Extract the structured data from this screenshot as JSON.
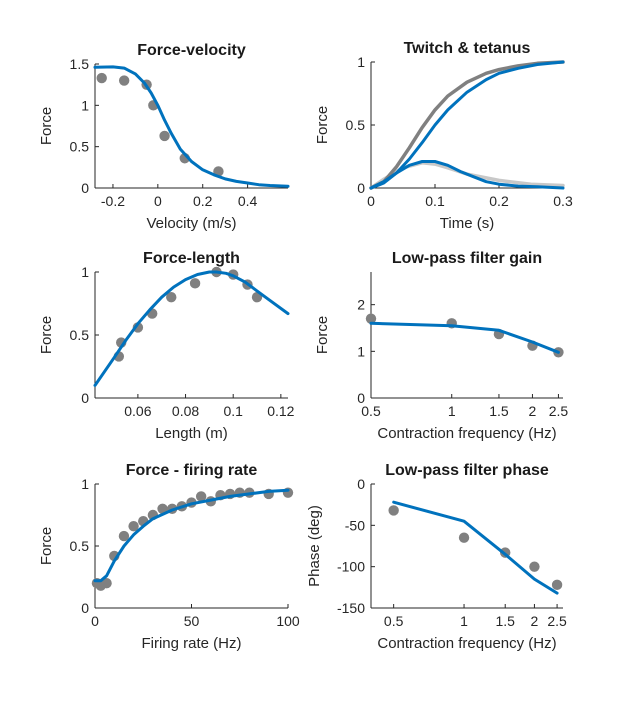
{
  "colors": {
    "fit": "#0072BD",
    "data": "#808080",
    "data_light": "#C8C8C8",
    "axis": "#262626"
  },
  "chart_data": [
    {
      "type": "scatter",
      "title": "Force-velocity",
      "xlabel": "Velocity (m/s)",
      "ylabel": "Force",
      "xlim": [
        -0.28,
        0.58
      ],
      "ylim": [
        0,
        1.5
      ],
      "xticks": [
        -0.2,
        0,
        0.2,
        0.4
      ],
      "xtick_labels": [
        "-0.2",
        "0",
        "0.2",
        "0.4"
      ],
      "yticks": [
        0,
        0.5,
        1,
        1.5
      ],
      "ytick_labels": [
        "0",
        "0.5",
        "1",
        "1.5"
      ],
      "points": {
        "x": [
          -0.25,
          -0.15,
          -0.05,
          -0.02,
          0.03,
          0.12,
          0.27
        ],
        "y": [
          1.33,
          1.3,
          1.25,
          1.0,
          0.63,
          0.36,
          0.2
        ]
      },
      "lines": [
        {
          "x": [
            -0.28,
            -0.2,
            -0.15,
            -0.1,
            -0.06,
            -0.03,
            0,
            0.03,
            0.06,
            0.1,
            0.15,
            0.2,
            0.25,
            0.3,
            0.35,
            0.4,
            0.45,
            0.5,
            0.58
          ],
          "y": [
            1.46,
            1.465,
            1.45,
            1.38,
            1.27,
            1.15,
            1.0,
            0.82,
            0.66,
            0.47,
            0.32,
            0.22,
            0.16,
            0.11,
            0.08,
            0.06,
            0.04,
            0.03,
            0.02
          ]
        }
      ]
    },
    {
      "type": "line",
      "title": "Twitch & tetanus",
      "xlabel": "Time (s)",
      "ylabel": "Force",
      "xlim": [
        0,
        0.3
      ],
      "ylim": [
        0,
        1
      ],
      "xticks": [
        0,
        0.1,
        0.2,
        0.3
      ],
      "xtick_labels": [
        "0",
        "0.1",
        "0.2",
        "0.3"
      ],
      "yticks": [
        0,
        0.5,
        1
      ],
      "ytick_labels": [
        "0",
        "0.5",
        "1"
      ],
      "lines": [
        {
          "style": "data_light",
          "x": [
            0,
            0.02,
            0.05,
            0.08,
            0.1,
            0.12,
            0.15,
            0.2,
            0.25,
            0.3
          ],
          "y": [
            0,
            0.07,
            0.16,
            0.2,
            0.19,
            0.16,
            0.11,
            0.06,
            0.03,
            0.02
          ]
        },
        {
          "style": "data",
          "x": [
            0,
            0.02,
            0.04,
            0.06,
            0.08,
            0.1,
            0.12,
            0.15,
            0.18,
            0.2,
            0.23,
            0.26,
            0.3
          ],
          "y": [
            0,
            0.05,
            0.17,
            0.32,
            0.48,
            0.62,
            0.73,
            0.84,
            0.91,
            0.94,
            0.97,
            0.99,
            1.0
          ]
        },
        {
          "style": "fit",
          "x": [
            0,
            0.02,
            0.04,
            0.06,
            0.08,
            0.1,
            0.12,
            0.15,
            0.18,
            0.2,
            0.23,
            0.26,
            0.3
          ],
          "y": [
            0,
            0.04,
            0.12,
            0.23,
            0.36,
            0.5,
            0.62,
            0.76,
            0.86,
            0.91,
            0.95,
            0.98,
            1.0
          ]
        },
        {
          "style": "fit",
          "x": [
            0,
            0.02,
            0.04,
            0.06,
            0.08,
            0.1,
            0.12,
            0.14,
            0.16,
            0.18,
            0.2,
            0.23,
            0.26,
            0.3
          ],
          "y": [
            0,
            0.05,
            0.12,
            0.18,
            0.21,
            0.21,
            0.18,
            0.13,
            0.09,
            0.05,
            0.03,
            0.015,
            0.01,
            0.0
          ]
        }
      ]
    },
    {
      "type": "scatter",
      "title": "Force-length",
      "xlabel": "Length (m)",
      "ylabel": "Force",
      "xlim": [
        0.042,
        0.123
      ],
      "ylim": [
        0,
        1.0
      ],
      "xticks": [
        0.06,
        0.08,
        0.1,
        0.12
      ],
      "xtick_labels": [
        "0.06",
        "0.08",
        "0.1",
        "0.12"
      ],
      "yticks": [
        0,
        0.5,
        1
      ],
      "ytick_labels": [
        "0",
        "0.5",
        "1"
      ],
      "points": {
        "x": [
          0.052,
          0.053,
          0.06,
          0.066,
          0.074,
          0.084,
          0.093,
          0.1,
          0.106,
          0.11
        ],
        "y": [
          0.33,
          0.44,
          0.56,
          0.67,
          0.8,
          0.91,
          1.0,
          0.98,
          0.9,
          0.8
        ]
      },
      "lines": [
        {
          "x": [
            0.042,
            0.05,
            0.055,
            0.06,
            0.065,
            0.07,
            0.075,
            0.08,
            0.085,
            0.09,
            0.093,
            0.097,
            0.1,
            0.105,
            0.11,
            0.115,
            0.123
          ],
          "y": [
            0.1,
            0.32,
            0.46,
            0.59,
            0.7,
            0.8,
            0.88,
            0.94,
            0.98,
            1.0,
            1.0,
            0.99,
            0.97,
            0.92,
            0.85,
            0.78,
            0.67
          ]
        }
      ]
    },
    {
      "type": "scatter",
      "title": "Low-pass filter gain",
      "xlabel": "Contraction frequency (Hz)",
      "ylabel": "Force",
      "xscale": "log",
      "xlim": [
        0.5,
        2.6
      ],
      "ylim": [
        0,
        2.7
      ],
      "xticks": [
        0.5,
        1,
        1.5,
        2,
        2.5
      ],
      "xtick_labels": [
        "0.5",
        "1",
        "1.5",
        "2",
        "2.5"
      ],
      "yticks": [
        0,
        1,
        2
      ],
      "ytick_labels": [
        "0",
        "1",
        "2"
      ],
      "points": {
        "x": [
          0.5,
          1.0,
          1.5,
          2.0,
          2.5
        ],
        "y": [
          1.7,
          1.6,
          1.37,
          1.12,
          0.98
        ]
      },
      "lines": [
        {
          "x": [
            0.5,
            1.0,
            1.5,
            2.0,
            2.5
          ],
          "y": [
            1.6,
            1.55,
            1.45,
            1.2,
            0.98
          ]
        }
      ]
    },
    {
      "type": "scatter",
      "title": "Force - firing rate",
      "xlabel": "Firing rate (Hz)",
      "ylabel": "Force",
      "xlim": [
        0,
        100
      ],
      "ylim": [
        0,
        1.0
      ],
      "xticks": [
        0,
        50,
        100
      ],
      "xtick_labels": [
        "0",
        "50",
        "100"
      ],
      "yticks": [
        0,
        0.5,
        1
      ],
      "ytick_labels": [
        "0",
        "0.5",
        "1"
      ],
      "points": {
        "x": [
          1,
          3,
          6,
          10,
          15,
          20,
          25,
          30,
          35,
          40,
          45,
          50,
          55,
          60,
          65,
          70,
          75,
          80,
          90,
          100
        ],
        "y": [
          0.2,
          0.18,
          0.2,
          0.42,
          0.58,
          0.66,
          0.7,
          0.75,
          0.8,
          0.8,
          0.82,
          0.85,
          0.9,
          0.86,
          0.91,
          0.92,
          0.93,
          0.93,
          0.92,
          0.93
        ]
      },
      "lines": [
        {
          "x": [
            0,
            3,
            6,
            10,
            15,
            20,
            25,
            30,
            40,
            50,
            60,
            70,
            80,
            90,
            100
          ],
          "y": [
            0.22,
            0.22,
            0.26,
            0.38,
            0.5,
            0.59,
            0.66,
            0.72,
            0.79,
            0.84,
            0.87,
            0.9,
            0.92,
            0.94,
            0.95
          ]
        }
      ]
    },
    {
      "type": "scatter",
      "title": "Low-pass filter phase",
      "xlabel": "Contraction frequency (Hz)",
      "ylabel": "Phase (deg)",
      "xscale": "log",
      "xlim": [
        0.4,
        2.65
      ],
      "ylim": [
        -150,
        0
      ],
      "xticks": [
        0.5,
        1,
        1.5,
        2,
        2.5
      ],
      "xtick_labels": [
        "0.5",
        "1",
        "1.5",
        "2",
        "2.5"
      ],
      "yticks": [
        -150,
        -100,
        -50,
        0
      ],
      "ytick_labels": [
        "-150",
        "-100",
        "-50",
        "0"
      ],
      "points": {
        "x": [
          0.5,
          1.0,
          1.5,
          2.0,
          2.5
        ],
        "y": [
          -32,
          -65,
          -83,
          -100,
          -122
        ]
      },
      "lines": [
        {
          "x": [
            0.5,
            1.0,
            1.5,
            2.0,
            2.5
          ],
          "y": [
            -22,
            -45,
            -85,
            -115,
            -132
          ]
        }
      ]
    }
  ]
}
